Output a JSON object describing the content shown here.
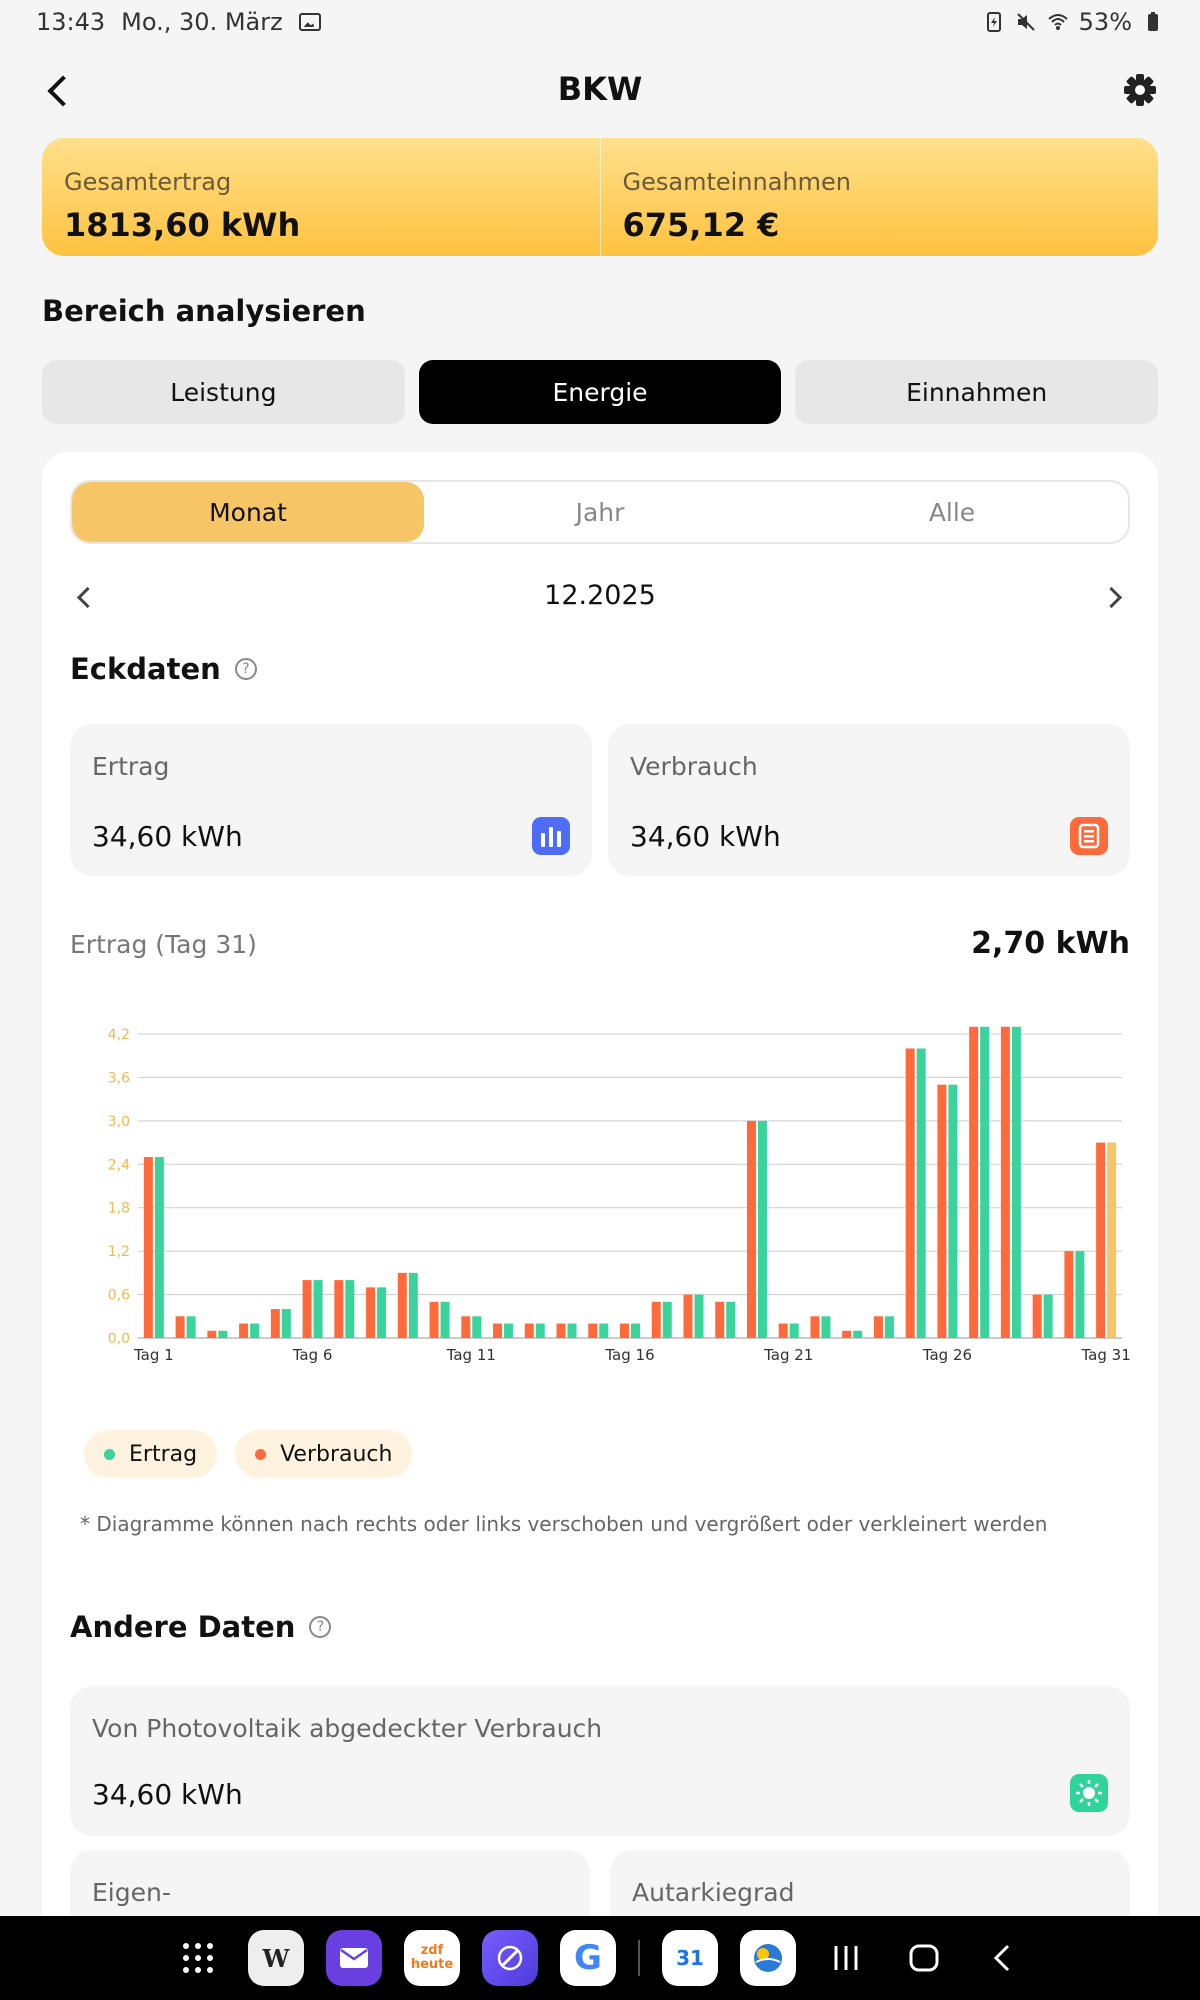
{
  "status_bar": {
    "time": "13:43",
    "date": "Mo., 30. März",
    "battery": "53%"
  },
  "header": {
    "title": "BKW"
  },
  "summary": {
    "total_yield_label": "Gesamtertrag",
    "total_yield_value": "1813,60 kWh",
    "total_income_label": "Gesamteinnahmen",
    "total_income_value": "675,12 €"
  },
  "analyze": {
    "title": "Bereich analysieren",
    "tabs": [
      "Leistung",
      "Energie",
      "Einnahmen"
    ],
    "active_tab": "Energie"
  },
  "period": {
    "options": [
      "Monat",
      "Jahr",
      "Alle"
    ],
    "active": "Monat",
    "current": "12.2025"
  },
  "key_data": {
    "title": "Eckdaten",
    "yield_label": "Ertrag",
    "yield_value": "34,60 kWh",
    "consumption_label": "Verbrauch",
    "consumption_value": "34,60 kWh"
  },
  "chart_header": {
    "label": "Ertrag (Tag 31)",
    "value": "2,70 kWh"
  },
  "colors": {
    "ertrag": "#3ad39c",
    "verbrauch": "#ff6a3d",
    "highlight": "#f5c56a",
    "axis_text": "#f0b84e"
  },
  "chart_data": {
    "type": "bar",
    "categories": [
      "1",
      "2",
      "3",
      "4",
      "5",
      "6",
      "7",
      "8",
      "9",
      "10",
      "11",
      "12",
      "13",
      "14",
      "15",
      "16",
      "17",
      "18",
      "19",
      "20",
      "21",
      "22",
      "23",
      "24",
      "25",
      "26",
      "27",
      "28",
      "29",
      "30",
      "31"
    ],
    "x_tick_labels": [
      "Tag 1",
      "Tag 6",
      "Tag 11",
      "Tag 16",
      "Tag 21",
      "Tag 26",
      "Tag 31"
    ],
    "y_ticks": [
      "0,0",
      "0,6",
      "1,2",
      "1,8",
      "2,4",
      "3,0",
      "3,6",
      "4,2"
    ],
    "ylim": [
      0,
      4.2
    ],
    "series": [
      {
        "name": "Verbrauch",
        "values": [
          2.5,
          0.3,
          0.1,
          0.2,
          0.4,
          0.8,
          0.8,
          0.7,
          0.9,
          0.5,
          0.3,
          0.2,
          0.2,
          0.2,
          0.2,
          0.2,
          0.5,
          0.6,
          0.5,
          3.0,
          0.2,
          0.3,
          0.1,
          0.3,
          4.0,
          3.5,
          4.3,
          4.3,
          0.6,
          1.2,
          2.7
        ]
      },
      {
        "name": "Ertrag",
        "values": [
          2.5,
          0.3,
          0.1,
          0.2,
          0.4,
          0.8,
          0.8,
          0.7,
          0.9,
          0.5,
          0.3,
          0.2,
          0.2,
          0.2,
          0.2,
          0.2,
          0.5,
          0.6,
          0.5,
          3.0,
          0.2,
          0.3,
          0.1,
          0.3,
          4.0,
          3.5,
          4.3,
          4.3,
          0.6,
          1.2,
          2.7
        ]
      }
    ],
    "highlighted_day": "31",
    "grid": true
  },
  "legend": {
    "ertrag": "Ertrag",
    "verbrauch": "Verbrauch"
  },
  "note": "* Diagramme können nach rechts oder links verschoben und vergrößert oder verkleinert werden",
  "other_data": {
    "title": "Andere Daten",
    "pv_covered_label": "Von Photovoltaik abgedeckter Verbrauch",
    "pv_covered_value": "34,60 kWh",
    "self_consumption_label": "Eigen-",
    "autarky_label": "Autarkiegrad"
  },
  "nav_apps": [
    "apps-grid",
    "wikipedia",
    "mail",
    "zdf-heute",
    "browser",
    "google",
    "calendar",
    "weather"
  ],
  "nav_labels": {
    "wikipedia": "W",
    "calendar": "31",
    "zdf": "zdf heute",
    "google": "G"
  }
}
